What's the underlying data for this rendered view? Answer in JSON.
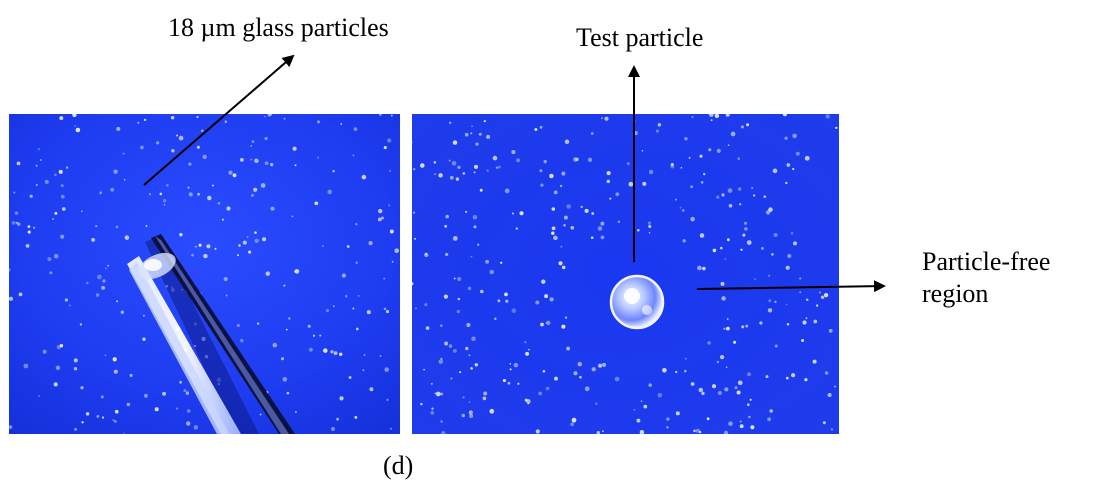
{
  "labels": {
    "glass_particles": "18 µm glass particles",
    "test_particle": "Test particle",
    "particle_free_line1": "Particle-free",
    "particle_free_line2": "region",
    "caption": "(d)"
  },
  "colors": {
    "background": "#ffffff",
    "panel_blue": "#1f3bf0",
    "panel_blue_dark": "#1428cc",
    "text": "#000000"
  },
  "images": {
    "left": "photo of blue-lit field with scattered glass particles and tweezer tips",
    "right": "photo of blue-lit field with a single test particle surrounded by a particle-free region"
  }
}
